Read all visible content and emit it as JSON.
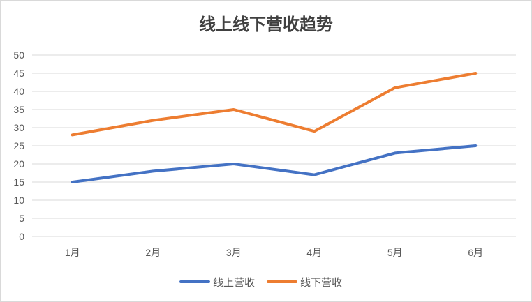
{
  "chart_data": {
    "type": "line",
    "title": "线上线下营收趋势",
    "categories": [
      "1月",
      "2月",
      "3月",
      "4月",
      "5月",
      "6月"
    ],
    "series": [
      {
        "name": "线上营收",
        "values": [
          15,
          18,
          20,
          17,
          23,
          25
        ],
        "color": "#4472C4"
      },
      {
        "name": "线下营收",
        "values": [
          28,
          32,
          35,
          29,
          41,
          45
        ],
        "color": "#ED7D31"
      }
    ],
    "ylim": [
      0,
      50
    ],
    "ytick_step": 5,
    "yticks": [
      "0",
      "5",
      "10",
      "15",
      "20",
      "25",
      "30",
      "35",
      "40",
      "45",
      "50"
    ],
    "grid": true,
    "gridline_color": "#d9d9d9",
    "legend_position": "bottom"
  }
}
